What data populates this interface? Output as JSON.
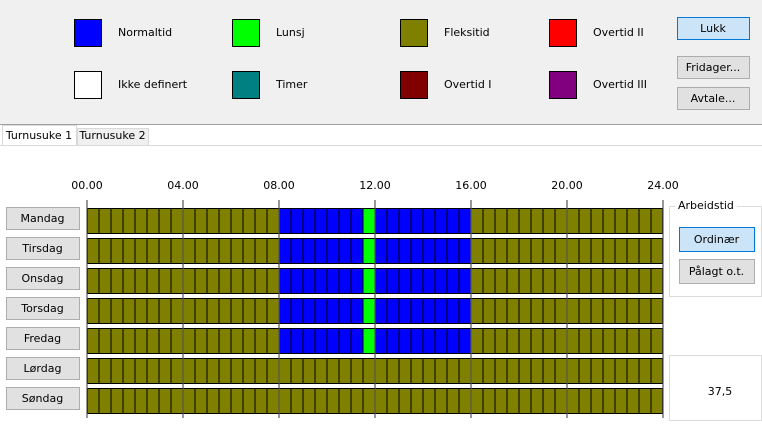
{
  "legend": [
    {
      "label": "Normaltid",
      "color": "#0000ff"
    },
    {
      "label": "Lunsj",
      "color": "#00ff00"
    },
    {
      "label": "Fleksitid",
      "color": "#808000"
    },
    {
      "label": "Overtid II",
      "color": "#ff0000"
    },
    {
      "label": "Ikke definert",
      "color": "#ffffff"
    },
    {
      "label": "Timer",
      "color": "#008080"
    },
    {
      "label": "Overtid I",
      "color": "#800000"
    },
    {
      "label": "Overtid III",
      "color": "#800080"
    }
  ],
  "buttons": [
    "Lukk",
    "Fridager...",
    "Avtale..."
  ],
  "tabs": [
    "Turnusuke 1",
    "Turnusuke 2"
  ],
  "axis": {
    "range": [
      0,
      24
    ],
    "step": 0.5,
    "ticks": [
      {
        "value": 0,
        "label": "00.00"
      },
      {
        "value": 4,
        "label": "04.00"
      },
      {
        "value": 8,
        "label": "08.00"
      },
      {
        "value": 12,
        "label": "12.00"
      },
      {
        "value": 16,
        "label": "16.00"
      },
      {
        "value": 20,
        "label": "20.00"
      },
      {
        "value": 24,
        "label": "24.00"
      }
    ]
  },
  "days": [
    {
      "name": "Mandag",
      "segments": [
        {
          "from": 0,
          "to": 8,
          "legend": 2
        },
        {
          "from": 8,
          "to": 11.5,
          "legend": 0
        },
        {
          "from": 11.5,
          "to": 12,
          "legend": 1
        },
        {
          "from": 12,
          "to": 16,
          "legend": 0
        },
        {
          "from": 16,
          "to": 24,
          "legend": 2
        }
      ]
    },
    {
      "name": "Tirsdag",
      "segments": [
        {
          "from": 0,
          "to": 8,
          "legend": 2
        },
        {
          "from": 8,
          "to": 11.5,
          "legend": 0
        },
        {
          "from": 11.5,
          "to": 12,
          "legend": 1
        },
        {
          "from": 12,
          "to": 16,
          "legend": 0
        },
        {
          "from": 16,
          "to": 24,
          "legend": 2
        }
      ]
    },
    {
      "name": "Onsdag",
      "segments": [
        {
          "from": 0,
          "to": 8,
          "legend": 2
        },
        {
          "from": 8,
          "to": 11.5,
          "legend": 0
        },
        {
          "from": 11.5,
          "to": 12,
          "legend": 1
        },
        {
          "from": 12,
          "to": 16,
          "legend": 0
        },
        {
          "from": 16,
          "to": 24,
          "legend": 2
        }
      ]
    },
    {
      "name": "Torsdag",
      "segments": [
        {
          "from": 0,
          "to": 8,
          "legend": 2
        },
        {
          "from": 8,
          "to": 11.5,
          "legend": 0
        },
        {
          "from": 11.5,
          "to": 12,
          "legend": 1
        },
        {
          "from": 12,
          "to": 16,
          "legend": 0
        },
        {
          "from": 16,
          "to": 24,
          "legend": 2
        }
      ]
    },
    {
      "name": "Fredag",
      "segments": [
        {
          "from": 0,
          "to": 8,
          "legend": 2
        },
        {
          "from": 8,
          "to": 11.5,
          "legend": 0
        },
        {
          "from": 11.5,
          "to": 12,
          "legend": 1
        },
        {
          "from": 12,
          "to": 16,
          "legend": 0
        },
        {
          "from": 16,
          "to": 24,
          "legend": 2
        }
      ]
    },
    {
      "name": "Lørdag",
      "segments": [
        {
          "from": 0,
          "to": 24,
          "legend": 2
        }
      ]
    },
    {
      "name": "Søndag",
      "segments": [
        {
          "from": 0,
          "to": 24,
          "legend": 2
        }
      ]
    }
  ],
  "worktime": {
    "title": "Arbeidstid",
    "options": [
      "Ordinær",
      "Pålagt o.t."
    ],
    "selected": 0
  },
  "total": "37,5"
}
